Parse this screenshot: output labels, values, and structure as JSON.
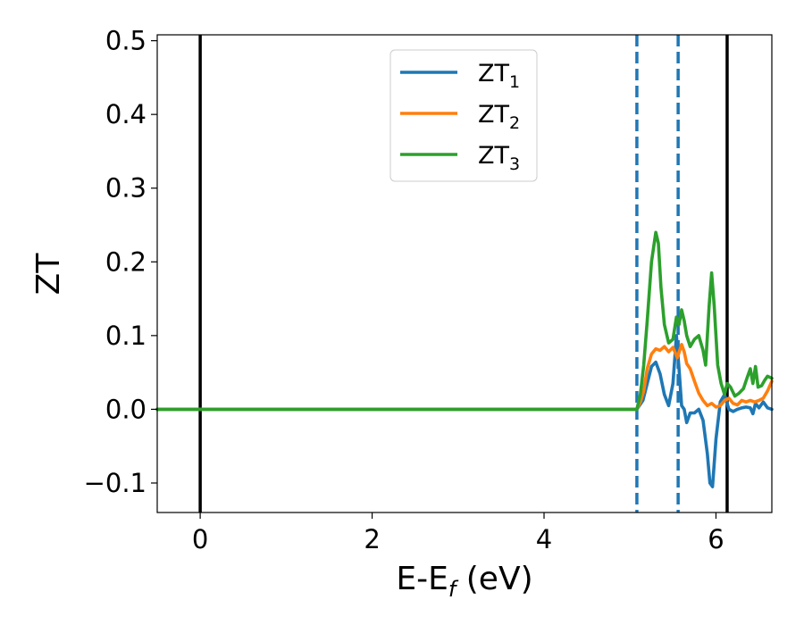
{
  "chart_data": {
    "type": "line",
    "xlabel_main": "E-E",
    "xlabel_sub": "f",
    "xlabel_unit": " (eV)",
    "ylabel": "ZT",
    "xlim": [
      -0.5,
      6.65
    ],
    "ylim": [
      -0.14,
      0.508
    ],
    "x_ticks": [
      0,
      2,
      4,
      6
    ],
    "x_tick_labels": [
      "0",
      "2",
      "4",
      "6"
    ],
    "y_ticks": [
      -0.1,
      0.0,
      0.1,
      0.2,
      0.3,
      0.4,
      0.5
    ],
    "y_tick_labels": [
      "−0.1",
      "0.0",
      "0.1",
      "0.2",
      "0.3",
      "0.4",
      "0.5"
    ],
    "grid": false,
    "legend_position": "top-center",
    "vertical_lines": [
      {
        "x": 0.0,
        "style": "solid",
        "color": "#000000"
      },
      {
        "x": 6.13,
        "style": "solid",
        "color": "#000000"
      },
      {
        "x": 5.08,
        "style": "dashed",
        "color": "#1f77b4"
      },
      {
        "x": 5.56,
        "style": "dashed",
        "color": "#1f77b4"
      }
    ],
    "series": [
      {
        "name_main": "ZT",
        "name_sub": "1",
        "color": "#1f77b4",
        "x": [
          -0.5,
          5.08,
          5.15,
          5.2,
          5.25,
          5.3,
          5.35,
          5.4,
          5.45,
          5.5,
          5.54,
          5.57,
          5.6,
          5.63,
          5.66,
          5.7,
          5.75,
          5.8,
          5.85,
          5.9,
          5.93,
          5.96,
          6.0,
          6.05,
          6.1,
          6.15,
          6.2,
          6.25,
          6.3,
          6.35,
          6.4,
          6.43,
          6.46,
          6.5,
          6.55,
          6.6,
          6.65
        ],
        "y": [
          0.0,
          0.0,
          0.012,
          0.035,
          0.058,
          0.064,
          0.048,
          0.02,
          0.005,
          0.035,
          0.1,
          0.055,
          0.005,
          0.0,
          -0.018,
          -0.005,
          -0.005,
          0.0,
          -0.015,
          -0.06,
          -0.1,
          -0.105,
          -0.04,
          0.01,
          0.02,
          0.0,
          -0.003,
          0.0,
          0.002,
          0.003,
          0.002,
          -0.006,
          0.008,
          0.002,
          0.01,
          0.002,
          0.0
        ]
      },
      {
        "name_main": "ZT",
        "name_sub": "2",
        "color": "#ff7f0e",
        "x": [
          -0.5,
          5.08,
          5.12,
          5.16,
          5.2,
          5.25,
          5.3,
          5.35,
          5.4,
          5.45,
          5.5,
          5.55,
          5.6,
          5.63,
          5.66,
          5.7,
          5.75,
          5.8,
          5.85,
          5.9,
          5.95,
          6.0,
          6.05,
          6.1,
          6.15,
          6.2,
          6.25,
          6.3,
          6.35,
          6.4,
          6.45,
          6.5,
          6.55,
          6.6,
          6.65
        ],
        "y": [
          0.0,
          0.0,
          0.01,
          0.025,
          0.055,
          0.075,
          0.082,
          0.08,
          0.085,
          0.078,
          0.084,
          0.07,
          0.088,
          0.078,
          0.062,
          0.055,
          0.038,
          0.022,
          0.012,
          0.005,
          0.008,
          0.003,
          0.005,
          0.012,
          0.015,
          0.008,
          0.006,
          0.012,
          0.01,
          0.012,
          0.01,
          0.012,
          0.015,
          0.025,
          0.038
        ]
      },
      {
        "name_main": "ZT",
        "name_sub": "3",
        "color": "#2ca02c",
        "x": [
          -0.5,
          5.08,
          5.12,
          5.16,
          5.2,
          5.25,
          5.3,
          5.33,
          5.36,
          5.4,
          5.45,
          5.5,
          5.54,
          5.57,
          5.6,
          5.63,
          5.66,
          5.7,
          5.75,
          5.8,
          5.85,
          5.88,
          5.92,
          5.95,
          5.98,
          6.02,
          6.06,
          6.1,
          6.13,
          6.17,
          6.22,
          6.27,
          6.32,
          6.36,
          6.4,
          6.43,
          6.46,
          6.49,
          6.53,
          6.57,
          6.6,
          6.65
        ],
        "y": [
          0.0,
          0.0,
          0.02,
          0.06,
          0.12,
          0.2,
          0.24,
          0.225,
          0.165,
          0.115,
          0.09,
          0.095,
          0.125,
          0.115,
          0.135,
          0.12,
          0.1,
          0.085,
          0.095,
          0.1,
          0.08,
          0.06,
          0.14,
          0.185,
          0.14,
          0.06,
          0.035,
          0.02,
          0.035,
          0.03,
          0.018,
          0.022,
          0.028,
          0.042,
          0.055,
          0.035,
          0.058,
          0.03,
          0.032,
          0.04,
          0.045,
          0.042
        ]
      }
    ]
  }
}
